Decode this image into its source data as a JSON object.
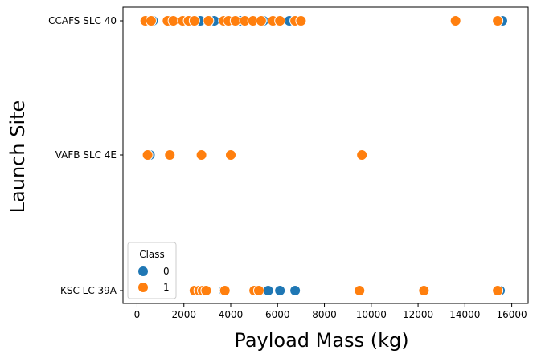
{
  "chart_data": {
    "type": "scatter",
    "xlabel": "Payload Mass (kg)",
    "ylabel": "Launch Site",
    "x_ticks": [
      0,
      2000,
      4000,
      6000,
      8000,
      10000,
      12000,
      14000,
      16000
    ],
    "xlim": [
      -600,
      16700
    ],
    "categories": [
      "CCAFS SLC 40",
      "VAFB SLC 4E",
      "KSC LC 39A"
    ],
    "legend": {
      "title": "Class",
      "position": "lower-left",
      "entries": [
        "0",
        "1"
      ]
    },
    "colors": {
      "0": "#1f77b4",
      "1": "#ff7f0e"
    },
    "points": [
      {
        "x": 500,
        "site": "CCAFS SLC 40",
        "class": 0
      },
      {
        "x": 680,
        "site": "CCAFS SLC 40",
        "class": 0
      },
      {
        "x": 2700,
        "site": "CCAFS SLC 40",
        "class": 0
      },
      {
        "x": 3200,
        "site": "CCAFS SLC 40",
        "class": 0
      },
      {
        "x": 3300,
        "site": "CCAFS SLC 40",
        "class": 0
      },
      {
        "x": 4420,
        "site": "CCAFS SLC 40",
        "class": 0
      },
      {
        "x": 5400,
        "site": "CCAFS SLC 40",
        "class": 0
      },
      {
        "x": 6500,
        "site": "CCAFS SLC 40",
        "class": 0
      },
      {
        "x": 15600,
        "site": "CCAFS SLC 40",
        "class": 0
      },
      {
        "x": 350,
        "site": "CCAFS SLC 40",
        "class": 1
      },
      {
        "x": 600,
        "site": "CCAFS SLC 40",
        "class": 1
      },
      {
        "x": 1300,
        "site": "CCAFS SLC 40",
        "class": 1
      },
      {
        "x": 1550,
        "site": "CCAFS SLC 40",
        "class": 1
      },
      {
        "x": 1950,
        "site": "CCAFS SLC 40",
        "class": 1
      },
      {
        "x": 2200,
        "site": "CCAFS SLC 40",
        "class": 1
      },
      {
        "x": 2450,
        "site": "CCAFS SLC 40",
        "class": 1
      },
      {
        "x": 3050,
        "site": "CCAFS SLC 40",
        "class": 1
      },
      {
        "x": 3700,
        "site": "CCAFS SLC 40",
        "class": 1
      },
      {
        "x": 3900,
        "site": "CCAFS SLC 40",
        "class": 1
      },
      {
        "x": 4200,
        "site": "CCAFS SLC 40",
        "class": 1
      },
      {
        "x": 4600,
        "site": "CCAFS SLC 40",
        "class": 1
      },
      {
        "x": 4950,
        "site": "CCAFS SLC 40",
        "class": 1
      },
      {
        "x": 5300,
        "site": "CCAFS SLC 40",
        "class": 1
      },
      {
        "x": 5800,
        "site": "CCAFS SLC 40",
        "class": 1
      },
      {
        "x": 6100,
        "site": "CCAFS SLC 40",
        "class": 1
      },
      {
        "x": 6750,
        "site": "CCAFS SLC 40",
        "class": 1
      },
      {
        "x": 7000,
        "site": "CCAFS SLC 40",
        "class": 1
      },
      {
        "x": 13600,
        "site": "CCAFS SLC 40",
        "class": 1
      },
      {
        "x": 15400,
        "site": "CCAFS SLC 40",
        "class": 1
      },
      {
        "x": 550,
        "site": "VAFB SLC 4E",
        "class": 0
      },
      {
        "x": 450,
        "site": "VAFB SLC 4E",
        "class": 1
      },
      {
        "x": 1400,
        "site": "VAFB SLC 4E",
        "class": 1
      },
      {
        "x": 2750,
        "site": "VAFB SLC 4E",
        "class": 1
      },
      {
        "x": 4000,
        "site": "VAFB SLC 4E",
        "class": 1
      },
      {
        "x": 9600,
        "site": "VAFB SLC 4E",
        "class": 1
      },
      {
        "x": 3700,
        "site": "KSC LC 39A",
        "class": 0
      },
      {
        "x": 5250,
        "site": "KSC LC 39A",
        "class": 0
      },
      {
        "x": 5600,
        "site": "KSC LC 39A",
        "class": 0
      },
      {
        "x": 6100,
        "site": "KSC LC 39A",
        "class": 0
      },
      {
        "x": 6750,
        "site": "KSC LC 39A",
        "class": 0
      },
      {
        "x": 15500,
        "site": "KSC LC 39A",
        "class": 0
      },
      {
        "x": 2450,
        "site": "KSC LC 39A",
        "class": 1
      },
      {
        "x": 2650,
        "site": "KSC LC 39A",
        "class": 1
      },
      {
        "x": 2800,
        "site": "KSC LC 39A",
        "class": 1
      },
      {
        "x": 2950,
        "site": "KSC LC 39A",
        "class": 1
      },
      {
        "x": 3750,
        "site": "KSC LC 39A",
        "class": 1
      },
      {
        "x": 5000,
        "site": "KSC LC 39A",
        "class": 1
      },
      {
        "x": 5200,
        "site": "KSC LC 39A",
        "class": 1
      },
      {
        "x": 9500,
        "site": "KSC LC 39A",
        "class": 1
      },
      {
        "x": 12250,
        "site": "KSC LC 39A",
        "class": 1
      },
      {
        "x": 15400,
        "site": "KSC LC 39A",
        "class": 1
      }
    ]
  }
}
